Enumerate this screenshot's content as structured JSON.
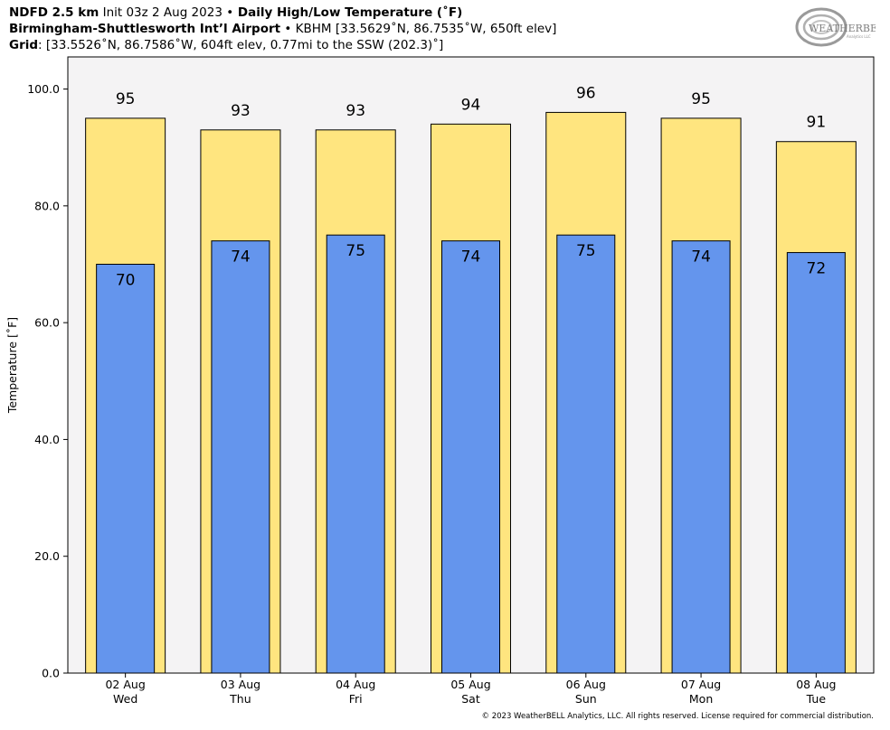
{
  "header": {
    "line1": {
      "model": "NDFD 2.5 km",
      "init": " Init 03z 2 Aug 2023 ",
      "sep": "•",
      "product": " Daily High/Low Temperature (˚F)"
    },
    "line2": {
      "station": "Birmingham-Shuttlesworth Int’l Airport",
      "sep": " • ",
      "info": "KBHM [33.5629˚N, 86.7535˚W, 650ft elev]"
    },
    "line3": {
      "label": "Grid",
      "info": ": [33.5526˚N, 86.7586˚W, 604ft elev, 0.77mi to the SSW (202.3)˚]"
    }
  },
  "logo": {
    "text": "WEATHERBELL",
    "subtext": "Analytics LLC",
    "color": "#8a8a8a"
  },
  "footer": "© 2023 WeatherBELL Analytics, LLC. All rights reserved. License required for commercial distribution.",
  "chart_data": {
    "type": "bar",
    "title": "Daily High/Low Temperature (˚F)",
    "xlabel": "",
    "ylabel": "Temperature [˚F]",
    "ylim": [
      0,
      105.5
    ],
    "yticks": [
      0,
      20,
      40,
      60,
      80,
      100
    ],
    "ytick_labels": [
      "0.0",
      "20.0",
      "40.0",
      "60.0",
      "80.0",
      "100.0"
    ],
    "categories": [
      {
        "date": "02 Aug",
        "day": "Wed"
      },
      {
        "date": "03 Aug",
        "day": "Thu"
      },
      {
        "date": "04 Aug",
        "day": "Fri"
      },
      {
        "date": "05 Aug",
        "day": "Sat"
      },
      {
        "date": "06 Aug",
        "day": "Sun"
      },
      {
        "date": "07 Aug",
        "day": "Mon"
      },
      {
        "date": "08 Aug",
        "day": "Tue"
      }
    ],
    "series": [
      {
        "name": "",
        "role": "high",
        "color": "#ffe57f",
        "values": [
          95,
          93,
          93,
          94,
          96,
          95,
          91
        ]
      },
      {
        "name": "",
        "role": "low",
        "color": "#6495ed",
        "values": [
          70,
          74,
          75,
          74,
          75,
          74,
          72
        ]
      }
    ],
    "plot_background": "#f4f3f4",
    "grid": false,
    "legend": "none"
  }
}
